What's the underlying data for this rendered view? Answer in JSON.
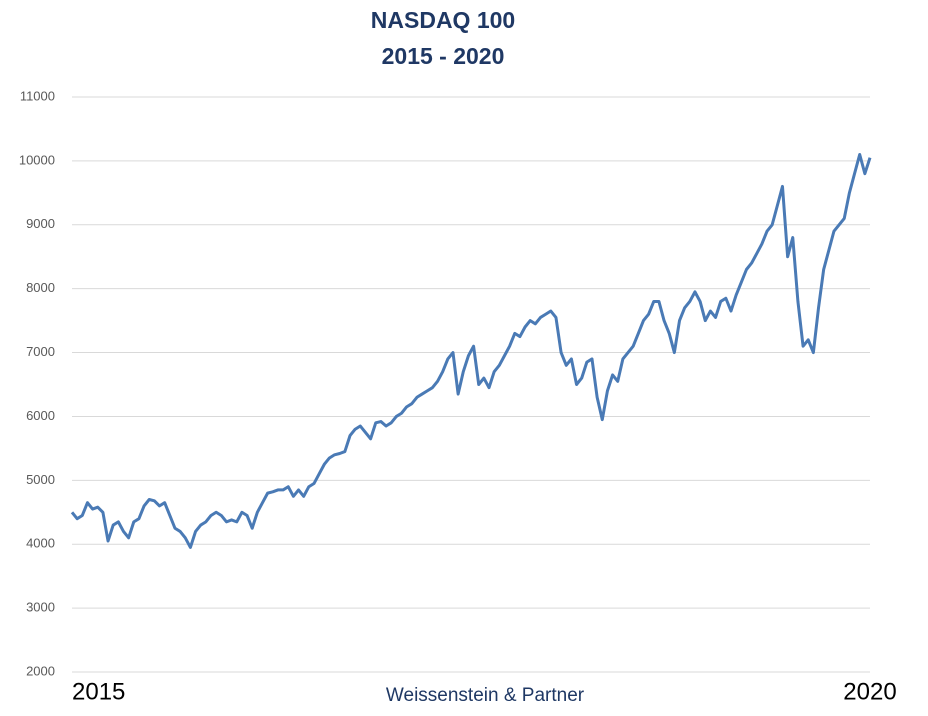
{
  "chart_data": {
    "type": "line",
    "title": "NASDAQ 100",
    "subtitle": "2015 - 2020",
    "footer": "Weissenstein & Partner",
    "categories": [
      "2015",
      null,
      null,
      null,
      null,
      null,
      null,
      null,
      null,
      null,
      null,
      null,
      null,
      null,
      null,
      null,
      null,
      null,
      null,
      null,
      null,
      null,
      null,
      null,
      null,
      null,
      null,
      null,
      null,
      null,
      null,
      null,
      null,
      null,
      null,
      null,
      null,
      null,
      null,
      null,
      null,
      null,
      null,
      null,
      null,
      null,
      null,
      null,
      null,
      null,
      null,
      null,
      null,
      null,
      null,
      null,
      null,
      null,
      null,
      null,
      null,
      null,
      null,
      null,
      null,
      null,
      null,
      null,
      null,
      null,
      null,
      null,
      null,
      null,
      null,
      null,
      null,
      null,
      null,
      null,
      null,
      null,
      null,
      null,
      null,
      null,
      null,
      null,
      null,
      null,
      null,
      null,
      null,
      null,
      null,
      null,
      null,
      null,
      null,
      null,
      null,
      null,
      null,
      null,
      null,
      null,
      null,
      null,
      null,
      null,
      null,
      null,
      null,
      null,
      null,
      null,
      null,
      null,
      null,
      null,
      null,
      null,
      null,
      null,
      null,
      null,
      null,
      null,
      null,
      null,
      null,
      null,
      null,
      null,
      null,
      null,
      null,
      null,
      null,
      null,
      null,
      null,
      null,
      null,
      null,
      null,
      null,
      null,
      null,
      null,
      null,
      null,
      null,
      null,
      null,
      "2020"
    ],
    "series": [
      {
        "name": "NASDAQ 100",
        "color": "#4a7ab5",
        "values": [
          4500,
          4400,
          4450,
          4650,
          4550,
          4580,
          4500,
          4050,
          4300,
          4350,
          4200,
          4100,
          4350,
          4400,
          4600,
          4700,
          4680,
          4600,
          4650,
          4450,
          4250,
          4200,
          4100,
          3950,
          4200,
          4300,
          4350,
          4450,
          4500,
          4450,
          4350,
          4380,
          4350,
          4500,
          4450,
          4250,
          4500,
          4650,
          4800,
          4820,
          4850,
          4850,
          4900,
          4750,
          4850,
          4750,
          4900,
          4950,
          5100,
          5250,
          5350,
          5400,
          5420,
          5450,
          5700,
          5800,
          5850,
          5750,
          5650,
          5900,
          5920,
          5850,
          5900,
          6000,
          6050,
          6150,
          6200,
          6300,
          6350,
          6400,
          6450,
          6550,
          6700,
          6900,
          7000,
          6350,
          6700,
          6950,
          7100,
          6500,
          6600,
          6450,
          6700,
          6800,
          6950,
          7100,
          7300,
          7250,
          7400,
          7500,
          7450,
          7550,
          7600,
          7650,
          7550,
          7000,
          6800,
          6900,
          6500,
          6600,
          6850,
          6900,
          6300,
          5950,
          6400,
          6650,
          6550,
          6900,
          7000,
          7100,
          7300,
          7500,
          7600,
          7800,
          7800,
          7500,
          7300,
          7000,
          7500,
          7700,
          7800,
          7950,
          7800,
          7500,
          7650,
          7550,
          7800,
          7850,
          7650,
          7900,
          8100,
          8300,
          8400,
          8550,
          8700,
          8900,
          9000,
          9300,
          9600,
          8500,
          8800,
          7800,
          7100,
          7200,
          7000,
          7700,
          8300,
          8600,
          8900,
          9000,
          9100,
          9500,
          9800,
          10100,
          9800,
          10050
        ]
      }
    ],
    "ylim": [
      2000,
      11000
    ],
    "yticks": [
      2000,
      3000,
      4000,
      5000,
      6000,
      7000,
      8000,
      9000,
      10000,
      11000
    ],
    "grid": true
  }
}
